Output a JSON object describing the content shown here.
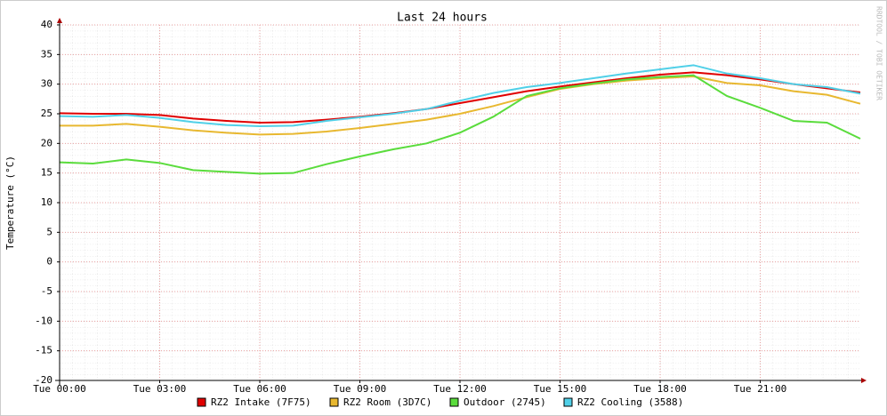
{
  "chart_data": {
    "type": "line",
    "title": "Last 24 hours",
    "y_label": "Temperature (°C)",
    "watermark": "RRDTOOL / TOBI OETIKER",
    "x": [
      0,
      1,
      2,
      3,
      4,
      5,
      6,
      7,
      8,
      9,
      10,
      11,
      12,
      13,
      14,
      15,
      16,
      17,
      18,
      19,
      20,
      21,
      22,
      23,
      24
    ],
    "xlim": [
      0,
      24
    ],
    "xticks": [
      {
        "value": 0,
        "label": "Tue 00:00"
      },
      {
        "value": 3,
        "label": "Tue 03:00"
      },
      {
        "value": 6,
        "label": "Tue 06:00"
      },
      {
        "value": 9,
        "label": "Tue 09:00"
      },
      {
        "value": 12,
        "label": "Tue 12:00"
      },
      {
        "value": 15,
        "label": "Tue 15:00"
      },
      {
        "value": 18,
        "label": "Tue 18:00"
      },
      {
        "value": 21,
        "label": "Tue 21:00"
      }
    ],
    "ylim": [
      -20,
      40
    ],
    "yticks": [
      -20,
      -15,
      -10,
      -5,
      0,
      5,
      10,
      15,
      20,
      25,
      30,
      35,
      40
    ],
    "grid": true,
    "series": [
      {
        "name": "RZ2 Intake (7F75)",
        "color": "#e00000",
        "values": [
          25.1,
          25.0,
          25.0,
          24.8,
          24.2,
          23.8,
          23.5,
          23.6,
          24.0,
          24.5,
          25.1,
          25.8,
          26.8,
          27.8,
          28.8,
          29.6,
          30.3,
          31.0,
          31.6,
          32.0,
          31.5,
          30.8,
          30.0,
          29.3,
          28.6
        ]
      },
      {
        "name": "RZ2 Room (3D7C)",
        "color": "#e8b830",
        "values": [
          23.0,
          23.0,
          23.3,
          22.8,
          22.2,
          21.8,
          21.5,
          21.6,
          22.0,
          22.6,
          23.3,
          24.0,
          25.0,
          26.3,
          27.8,
          29.2,
          30.0,
          30.6,
          31.0,
          31.3,
          30.2,
          29.8,
          28.8,
          28.2,
          26.7
        ]
      },
      {
        "name": "Outdoor (2745)",
        "color": "#5adc3c",
        "values": [
          16.8,
          16.6,
          17.3,
          16.7,
          15.5,
          15.2,
          14.9,
          15.0,
          16.5,
          17.8,
          19.0,
          20.0,
          21.8,
          24.5,
          28.0,
          29.3,
          30.1,
          30.8,
          31.2,
          31.5,
          28.0,
          26.0,
          23.8,
          23.5,
          20.8
        ]
      },
      {
        "name": "RZ2 Cooling (3588)",
        "color": "#50d0e8",
        "values": [
          24.6,
          24.5,
          24.8,
          24.3,
          23.6,
          23.1,
          22.9,
          23.0,
          23.8,
          24.4,
          25.0,
          25.8,
          27.2,
          28.5,
          29.5,
          30.2,
          31.0,
          31.8,
          32.5,
          33.2,
          31.8,
          31.0,
          30.0,
          29.5,
          28.4
        ]
      }
    ]
  }
}
